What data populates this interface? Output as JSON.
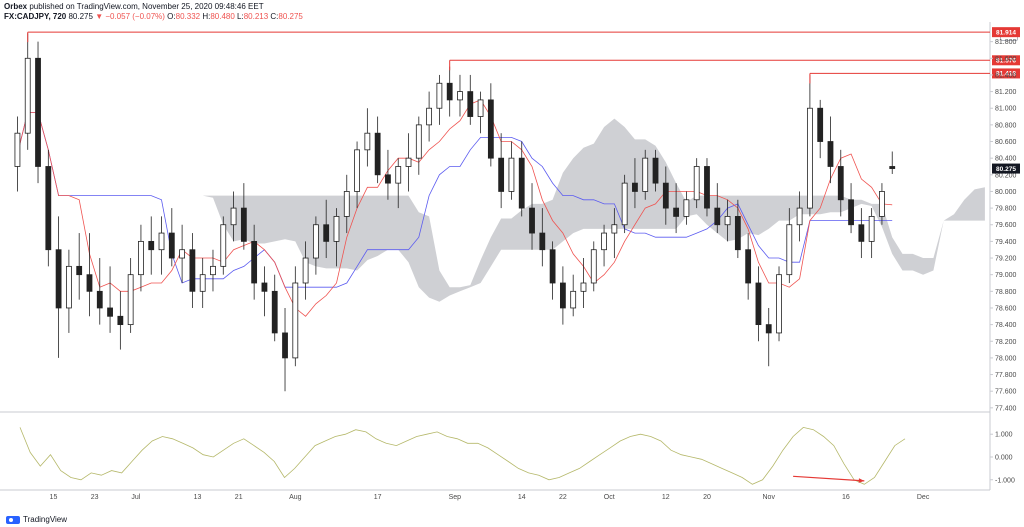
{
  "header": {
    "publisher": "Orbex",
    "published_text": "published on TradingView.com, November 25, 2020 09:48:46 EET",
    "symbol": "FX:CADJPY, 720",
    "last_price": "80.275",
    "change": "▼ −0.057 (−0.07%)",
    "ohlc": {
      "o_label": "O:",
      "o": "80.332",
      "h_label": "H:",
      "h": "80.480",
      "l_label": "L:",
      "l": "80.213",
      "c_label": "C:",
      "c": "80.275"
    }
  },
  "currency_label": "JPY",
  "footer": {
    "brand": "TradingView"
  },
  "colors": {
    "tenkan": "#ef5350",
    "kijun": "#5b5bf0",
    "cloud": "#cfd0d4",
    "candle": "#222222",
    "resistance": "#e53935",
    "oscillator": "#b5b86a",
    "divergence_arrow": "#e53935",
    "last_price_bg": "#131722"
  },
  "chart_data": [
    {
      "type": "candlestick",
      "title": "",
      "y_ticks": [
        "81.800",
        "81.600",
        "81.400",
        "81.200",
        "81.000",
        "80.800",
        "80.600",
        "80.400",
        "80.200",
        "80.000",
        "79.800",
        "79.600",
        "79.400",
        "79.200",
        "79.000",
        "78.800",
        "78.600",
        "78.400",
        "78.200",
        "78.000",
        "77.800",
        "77.600",
        "77.400"
      ],
      "ylim": [
        77.35,
        82.0
      ],
      "x_ticks": [
        "15",
        "23",
        "Jul",
        "13",
        "21",
        "Aug",
        "17",
        "Sep",
        "14",
        "22",
        "Oct",
        "12",
        "20",
        "Nov",
        "16",
        "Dec"
      ],
      "resistance_levels": [
        {
          "label": "81.914",
          "value": 81.914,
          "start_date": "2020-06-10"
        },
        {
          "label": "81.576",
          "value": 81.576,
          "start_date": "2020-08-31"
        },
        {
          "label": "81.418",
          "value": 81.418,
          "start_date": "2020-11-09"
        }
      ],
      "last_price": {
        "label": "80.275",
        "value": 80.275
      },
      "indicators": [
        "Ichimoku Cloud",
        "Tenkan-sen",
        "Kijun-sen"
      ],
      "candles": [
        {
          "date": "2020-06-08",
          "o": 80.3,
          "h": 80.9,
          "l": 80.0,
          "c": 80.7
        },
        {
          "date": "2020-06-10",
          "o": 80.7,
          "h": 81.9,
          "l": 80.5,
          "c": 81.6
        },
        {
          "date": "2020-06-12",
          "o": 81.6,
          "h": 81.8,
          "l": 80.1,
          "c": 80.3
        },
        {
          "date": "2020-06-14",
          "o": 80.3,
          "h": 80.5,
          "l": 79.1,
          "c": 79.3
        },
        {
          "date": "2020-06-16",
          "o": 79.3,
          "h": 79.7,
          "l": 78.0,
          "c": 78.6
        },
        {
          "date": "2020-06-18",
          "o": 78.6,
          "h": 79.3,
          "l": 78.3,
          "c": 79.1
        },
        {
          "date": "2020-06-20",
          "o": 79.1,
          "h": 79.5,
          "l": 78.7,
          "c": 79.0
        },
        {
          "date": "2020-06-22",
          "o": 79.0,
          "h": 79.5,
          "l": 78.5,
          "c": 78.8
        },
        {
          "date": "2020-06-24",
          "o": 78.8,
          "h": 79.2,
          "l": 78.4,
          "c": 78.6
        },
        {
          "date": "2020-06-26",
          "o": 78.6,
          "h": 79.1,
          "l": 78.3,
          "c": 78.5
        },
        {
          "date": "2020-06-28",
          "o": 78.5,
          "h": 78.8,
          "l": 78.1,
          "c": 78.4
        },
        {
          "date": "2020-06-30",
          "o": 78.4,
          "h": 79.2,
          "l": 78.3,
          "c": 79.0
        },
        {
          "date": "2020-07-02",
          "o": 79.0,
          "h": 79.6,
          "l": 78.8,
          "c": 79.4
        },
        {
          "date": "2020-07-04",
          "o": 79.4,
          "h": 79.7,
          "l": 79.0,
          "c": 79.3
        },
        {
          "date": "2020-07-06",
          "o": 79.3,
          "h": 79.7,
          "l": 79.0,
          "c": 79.5
        },
        {
          "date": "2020-07-08",
          "o": 79.5,
          "h": 79.8,
          "l": 79.1,
          "c": 79.2
        },
        {
          "date": "2020-07-10",
          "o": 79.2,
          "h": 79.6,
          "l": 78.9,
          "c": 79.3
        },
        {
          "date": "2020-07-12",
          "o": 79.3,
          "h": 79.5,
          "l": 78.6,
          "c": 78.8
        },
        {
          "date": "2020-07-14",
          "o": 78.8,
          "h": 79.2,
          "l": 78.6,
          "c": 79.0
        },
        {
          "date": "2020-07-16",
          "o": 79.0,
          "h": 79.3,
          "l": 78.8,
          "c": 79.1
        },
        {
          "date": "2020-07-18",
          "o": 79.1,
          "h": 79.7,
          "l": 79.0,
          "c": 79.6
        },
        {
          "date": "2020-07-20",
          "o": 79.6,
          "h": 80.0,
          "l": 79.4,
          "c": 79.8
        },
        {
          "date": "2020-07-22",
          "o": 79.8,
          "h": 80.1,
          "l": 79.3,
          "c": 79.4
        },
        {
          "date": "2020-07-24",
          "o": 79.4,
          "h": 79.6,
          "l": 78.7,
          "c": 78.9
        },
        {
          "date": "2020-07-26",
          "o": 78.9,
          "h": 79.1,
          "l": 78.5,
          "c": 78.8
        },
        {
          "date": "2020-07-28",
          "o": 78.8,
          "h": 79.0,
          "l": 78.2,
          "c": 78.3
        },
        {
          "date": "2020-07-30",
          "o": 78.3,
          "h": 78.6,
          "l": 77.6,
          "c": 78.0
        },
        {
          "date": "2020-08-01",
          "o": 78.0,
          "h": 79.1,
          "l": 77.9,
          "c": 78.9
        },
        {
          "date": "2020-08-03",
          "o": 78.9,
          "h": 79.4,
          "l": 78.7,
          "c": 79.2
        },
        {
          "date": "2020-08-05",
          "o": 79.2,
          "h": 79.7,
          "l": 79.0,
          "c": 79.6
        },
        {
          "date": "2020-08-07",
          "o": 79.6,
          "h": 79.9,
          "l": 79.2,
          "c": 79.4
        },
        {
          "date": "2020-08-09",
          "o": 79.4,
          "h": 79.8,
          "l": 79.1,
          "c": 79.7
        },
        {
          "date": "2020-08-11",
          "o": 79.7,
          "h": 80.2,
          "l": 79.5,
          "c": 80.0
        },
        {
          "date": "2020-08-13",
          "o": 80.0,
          "h": 80.6,
          "l": 79.8,
          "c": 80.5
        },
        {
          "date": "2020-08-15",
          "o": 80.5,
          "h": 81.0,
          "l": 80.3,
          "c": 80.7
        },
        {
          "date": "2020-08-17",
          "o": 80.7,
          "h": 80.9,
          "l": 80.1,
          "c": 80.2
        },
        {
          "date": "2020-08-19",
          "o": 80.2,
          "h": 80.5,
          "l": 79.9,
          "c": 80.1
        },
        {
          "date": "2020-08-21",
          "o": 80.1,
          "h": 80.4,
          "l": 79.8,
          "c": 80.3
        },
        {
          "date": "2020-08-23",
          "o": 80.3,
          "h": 80.7,
          "l": 80.0,
          "c": 80.4
        },
        {
          "date": "2020-08-25",
          "o": 80.4,
          "h": 80.9,
          "l": 80.2,
          "c": 80.8
        },
        {
          "date": "2020-08-27",
          "o": 80.8,
          "h": 81.2,
          "l": 80.6,
          "c": 81.0
        },
        {
          "date": "2020-08-29",
          "o": 81.0,
          "h": 81.4,
          "l": 80.8,
          "c": 81.3
        },
        {
          "date": "2020-08-31",
          "o": 81.3,
          "h": 81.5,
          "l": 80.9,
          "c": 81.1
        },
        {
          "date": "2020-09-02",
          "o": 81.1,
          "h": 81.4,
          "l": 80.9,
          "c": 81.2
        },
        {
          "date": "2020-09-04",
          "o": 81.2,
          "h": 81.4,
          "l": 80.8,
          "c": 80.9
        },
        {
          "date": "2020-09-06",
          "o": 80.9,
          "h": 81.2,
          "l": 80.7,
          "c": 81.1
        },
        {
          "date": "2020-09-08",
          "o": 81.1,
          "h": 81.3,
          "l": 80.3,
          "c": 80.4
        },
        {
          "date": "2020-09-10",
          "o": 80.4,
          "h": 80.7,
          "l": 79.8,
          "c": 80.0
        },
        {
          "date": "2020-09-12",
          "o": 80.0,
          "h": 80.6,
          "l": 79.9,
          "c": 80.4
        },
        {
          "date": "2020-09-14",
          "o": 80.4,
          "h": 80.6,
          "l": 79.7,
          "c": 79.8
        },
        {
          "date": "2020-09-16",
          "o": 79.8,
          "h": 80.1,
          "l": 79.3,
          "c": 79.5
        },
        {
          "date": "2020-09-18",
          "o": 79.5,
          "h": 79.8,
          "l": 79.1,
          "c": 79.3
        },
        {
          "date": "2020-09-20",
          "o": 79.3,
          "h": 79.4,
          "l": 78.7,
          "c": 78.9
        },
        {
          "date": "2020-09-22",
          "o": 78.9,
          "h": 79.1,
          "l": 78.4,
          "c": 78.6
        },
        {
          "date": "2020-09-24",
          "o": 78.6,
          "h": 79.0,
          "l": 78.5,
          "c": 78.8
        },
        {
          "date": "2020-09-26",
          "o": 78.8,
          "h": 79.2,
          "l": 78.6,
          "c": 78.9
        },
        {
          "date": "2020-09-28",
          "o": 78.9,
          "h": 79.4,
          "l": 78.8,
          "c": 79.3
        },
        {
          "date": "2020-09-30",
          "o": 79.3,
          "h": 79.6,
          "l": 79.1,
          "c": 79.5
        },
        {
          "date": "2020-10-02",
          "o": 79.5,
          "h": 79.8,
          "l": 79.2,
          "c": 79.6
        },
        {
          "date": "2020-10-04",
          "o": 79.6,
          "h": 80.2,
          "l": 79.5,
          "c": 80.1
        },
        {
          "date": "2020-10-06",
          "o": 80.1,
          "h": 80.4,
          "l": 79.8,
          "c": 80.0
        },
        {
          "date": "2020-10-08",
          "o": 80.0,
          "h": 80.5,
          "l": 79.9,
          "c": 80.4
        },
        {
          "date": "2020-10-10",
          "o": 80.4,
          "h": 80.5,
          "l": 80.0,
          "c": 80.1
        },
        {
          "date": "2020-10-12",
          "o": 80.1,
          "h": 80.3,
          "l": 79.6,
          "c": 79.8
        },
        {
          "date": "2020-10-14",
          "o": 79.8,
          "h": 80.1,
          "l": 79.5,
          "c": 79.7
        },
        {
          "date": "2020-10-16",
          "o": 79.7,
          "h": 80.0,
          "l": 79.6,
          "c": 79.9
        },
        {
          "date": "2020-10-18",
          "o": 79.9,
          "h": 80.4,
          "l": 79.8,
          "c": 80.3
        },
        {
          "date": "2020-10-20",
          "o": 80.3,
          "h": 80.4,
          "l": 79.7,
          "c": 79.8
        },
        {
          "date": "2020-10-22",
          "o": 79.8,
          "h": 80.1,
          "l": 79.5,
          "c": 79.6
        },
        {
          "date": "2020-10-24",
          "o": 79.6,
          "h": 79.9,
          "l": 79.4,
          "c": 79.7
        },
        {
          "date": "2020-10-26",
          "o": 79.7,
          "h": 79.9,
          "l": 79.2,
          "c": 79.3
        },
        {
          "date": "2020-10-28",
          "o": 79.3,
          "h": 79.5,
          "l": 78.7,
          "c": 78.9
        },
        {
          "date": "2020-10-30",
          "o": 78.9,
          "h": 79.1,
          "l": 78.2,
          "c": 78.4
        },
        {
          "date": "2020-11-01",
          "o": 78.4,
          "h": 78.6,
          "l": 77.9,
          "c": 78.3
        },
        {
          "date": "2020-11-03",
          "o": 78.3,
          "h": 79.1,
          "l": 78.2,
          "c": 79.0
        },
        {
          "date": "2020-11-05",
          "o": 79.0,
          "h": 79.8,
          "l": 78.9,
          "c": 79.6
        },
        {
          "date": "2020-11-07",
          "o": 79.6,
          "h": 80.0,
          "l": 79.4,
          "c": 79.8
        },
        {
          "date": "2020-11-09",
          "o": 79.8,
          "h": 81.4,
          "l": 79.7,
          "c": 81.0
        },
        {
          "date": "2020-11-11",
          "o": 81.0,
          "h": 81.1,
          "l": 80.4,
          "c": 80.6
        },
        {
          "date": "2020-11-13",
          "o": 80.6,
          "h": 80.9,
          "l": 80.1,
          "c": 80.3
        },
        {
          "date": "2020-11-15",
          "o": 80.3,
          "h": 80.5,
          "l": 79.7,
          "c": 79.9
        },
        {
          "date": "2020-11-17",
          "o": 79.9,
          "h": 80.1,
          "l": 79.5,
          "c": 79.6
        },
        {
          "date": "2020-11-19",
          "o": 79.6,
          "h": 79.8,
          "l": 79.2,
          "c": 79.4
        },
        {
          "date": "2020-11-21",
          "o": 79.4,
          "h": 79.8,
          "l": 79.2,
          "c": 79.7
        },
        {
          "date": "2020-11-23",
          "o": 79.7,
          "h": 80.1,
          "l": 79.6,
          "c": 80.0
        },
        {
          "date": "2020-11-25",
          "o": 80.3,
          "h": 80.48,
          "l": 80.21,
          "c": 80.275
        }
      ]
    },
    {
      "type": "line",
      "title": "",
      "y_ticks": [
        "1.000",
        "0.000",
        "-1.000"
      ],
      "ylim": [
        -1.45,
        1.8
      ],
      "series": [
        {
          "values": [
            1.3,
            0.2,
            -0.4,
            0.1,
            -0.6,
            -0.9,
            -1.0,
            -0.7,
            -0.8,
            -0.6,
            -0.7,
            -0.2,
            0.3,
            0.7,
            0.9,
            0.8,
            0.6,
            0.4,
            0.1,
            0.0,
            0.3,
            0.6,
            0.8,
            0.5,
            0.2,
            -0.2,
            -0.9,
            -0.5,
            0.0,
            0.5,
            0.7,
            0.9,
            1.0,
            1.2,
            1.1,
            0.8,
            0.6,
            0.5,
            0.7,
            0.9,
            1.0,
            1.1,
            0.9,
            0.8,
            0.6,
            0.6,
            0.4,
            0.1,
            -0.2,
            -0.5,
            -0.7,
            -0.8,
            -1.0,
            -0.9,
            -0.7,
            -0.5,
            -0.2,
            0.1,
            0.4,
            0.7,
            0.9,
            1.0,
            0.9,
            0.7,
            0.3,
            0.1,
            0.0,
            -0.1,
            -0.3,
            -0.5,
            -0.7,
            -0.9,
            -1.2,
            -1.0,
            -0.4,
            0.3,
            0.9,
            1.3,
            1.2,
            0.9,
            0.5,
            -0.3,
            -1.0,
            -1.2,
            -0.9,
            -0.2,
            0.5,
            0.8
          ]
        }
      ],
      "divergence_arrow": {
        "from_index": 76,
        "from_value": -0.85,
        "to_index": 83,
        "to_value": -1.05
      }
    }
  ]
}
